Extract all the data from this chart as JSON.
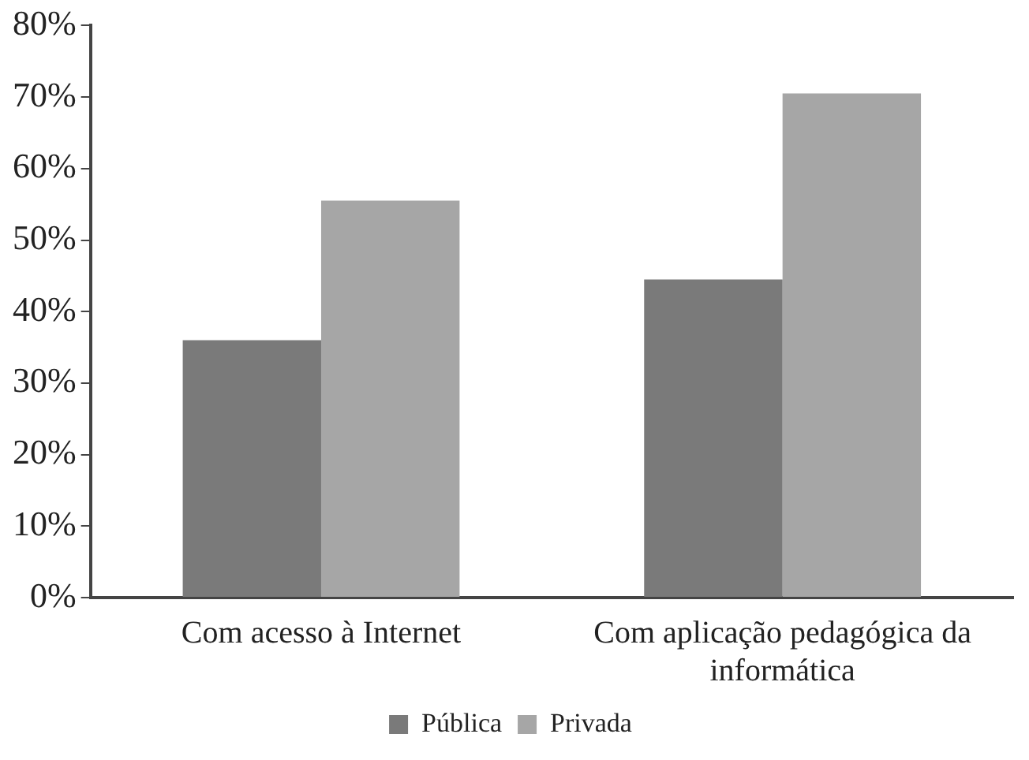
{
  "chart_data": {
    "type": "bar",
    "categories": [
      "Com acesso à Internet",
      "Com aplicação pedagógica da informática"
    ],
    "series": [
      {
        "name": "Pública",
        "color": "#7a7a7a",
        "values": [
          36,
          44.5
        ]
      },
      {
        "name": "Privada",
        "color": "#a6a6a6",
        "values": [
          55.5,
          70.5
        ]
      }
    ],
    "ylim": [
      0,
      80
    ],
    "yticks": [
      {
        "value": 0,
        "label": "0%"
      },
      {
        "value": 10,
        "label": "10%"
      },
      {
        "value": 20,
        "label": "20%"
      },
      {
        "value": 30,
        "label": "30%"
      },
      {
        "value": 40,
        "label": "40%"
      },
      {
        "value": 50,
        "label": "50%"
      },
      {
        "value": 60,
        "label": "60%"
      },
      {
        "value": 70,
        "label": "70%"
      },
      {
        "value": 80,
        "label": "80%"
      }
    ],
    "grid": false,
    "legend": "bottom"
  }
}
